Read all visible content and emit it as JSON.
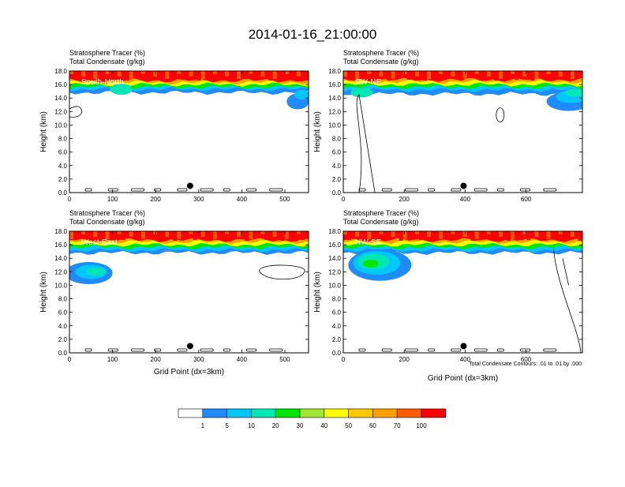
{
  "figure_title": "2014-01-16_21:00:00",
  "note": "Total Condensate Contours: .01 to .01 by .000",
  "chart_data": [
    {
      "type": "heatmap",
      "panel": "South-North",
      "title_lines": [
        "Stratosphere Tracer   (%)",
        "Total Condensate   (g/kg)"
      ],
      "overlay_label": "South-North",
      "ylabel": "Height (km)",
      "xlabel": "",
      "xlim": [
        0,
        555
      ],
      "xticks": [
        0,
        100,
        200,
        300,
        400,
        500
      ],
      "ylim": [
        0,
        18
      ],
      "yticks": [
        "0.0",
        "2.0",
        "4.0",
        "6.0",
        "8.0",
        "10.0",
        "12.0",
        "14.0",
        "16.0",
        "18.0"
      ],
      "marker_x": 280,
      "marker_y": 1.0,
      "bands": [
        {
          "level": 100,
          "bottom": 16.6
        },
        {
          "level": 70,
          "bottom": 16.3
        },
        {
          "level": 50,
          "bottom": 16.0
        },
        {
          "level": 30,
          "bottom": 15.6
        },
        {
          "level": 10,
          "bottom": 15.3
        },
        {
          "level": 5,
          "bottom": 14.8
        }
      ]
    },
    {
      "type": "heatmap",
      "panel": "SW-NE",
      "title_lines": [
        "Stratosphere Tracer   (%)",
        "Total Condensate   (g/kg)"
      ],
      "overlay_label": "SW-NE",
      "ylabel": "Height (km)",
      "xlabel": "",
      "xlim": [
        0,
        785
      ],
      "xticks": [
        0,
        200,
        400,
        600
      ],
      "ylim": [
        0,
        18
      ],
      "yticks": [
        "0.0",
        "2.0",
        "4.0",
        "6.0",
        "8.0",
        "10.0",
        "12.0",
        "14.0",
        "16.0",
        "18.0"
      ],
      "marker_x": 395,
      "marker_y": 1.0,
      "bands": [
        {
          "level": 100,
          "bottom": 16.7
        },
        {
          "level": 70,
          "bottom": 16.4
        },
        {
          "level": 50,
          "bottom": 16.0
        },
        {
          "level": 30,
          "bottom": 15.6
        },
        {
          "level": 10,
          "bottom": 15.2
        },
        {
          "level": 5,
          "bottom": 14.6
        }
      ]
    },
    {
      "type": "heatmap",
      "panel": "West-East",
      "title_lines": [
        "Stratosphere Tracer   (%)",
        "Total Condensate   (g/kg)"
      ],
      "overlay_label": "West-East",
      "ylabel": "Height (km)",
      "xlabel": "Grid Point (dx=3km)",
      "xlim": [
        0,
        555
      ],
      "xticks": [
        0,
        100,
        200,
        300,
        400,
        500
      ],
      "ylim": [
        0,
        18
      ],
      "yticks": [
        "0.0",
        "2.0",
        "4.0",
        "6.0",
        "8.0",
        "10.0",
        "12.0",
        "14.0",
        "16.0",
        "18.0"
      ],
      "marker_x": 280,
      "marker_y": 1.0,
      "bands": [
        {
          "level": 100,
          "bottom": 16.7
        },
        {
          "level": 70,
          "bottom": 16.4
        },
        {
          "level": 50,
          "bottom": 16.0
        },
        {
          "level": 30,
          "bottom": 15.6
        },
        {
          "level": 10,
          "bottom": 15.2
        },
        {
          "level": 5,
          "bottom": 14.8
        }
      ]
    },
    {
      "type": "heatmap",
      "panel": "NW-SE",
      "title_lines": [
        "Stratosphere Tracer   (%)",
        "Total Condensate   (g/kg)"
      ],
      "overlay_label": "NW-SE",
      "ylabel": "Height (km)",
      "xlabel": "Grid Point (dx=3km)",
      "xlim": [
        0,
        785
      ],
      "xticks": [
        0,
        200,
        400,
        600
      ],
      "ylim": [
        0,
        18
      ],
      "yticks": [
        "0.0",
        "2.0",
        "4.0",
        "6.0",
        "8.0",
        "10.0",
        "12.0",
        "14.0",
        "16.0",
        "18.0"
      ],
      "marker_x": 395,
      "marker_y": 1.0,
      "bands": [
        {
          "level": 100,
          "bottom": 16.7
        },
        {
          "level": 70,
          "bottom": 16.4
        },
        {
          "level": 50,
          "bottom": 16.0
        },
        {
          "level": 30,
          "bottom": 15.6
        },
        {
          "level": 10,
          "bottom": 15.2
        },
        {
          "level": 5,
          "bottom": 14.8
        }
      ]
    }
  ],
  "colorbar": {
    "colors": [
      "#ffffff",
      "#1e8cff",
      "#00c8ff",
      "#00e6b4",
      "#00e600",
      "#a0e632",
      "#ffff00",
      "#ffc800",
      "#ffa000",
      "#ff5a00",
      "#ff0000"
    ],
    "labels": [
      "1",
      "5",
      "10",
      "20",
      "30",
      "40",
      "50",
      "60",
      "70",
      "100"
    ]
  }
}
